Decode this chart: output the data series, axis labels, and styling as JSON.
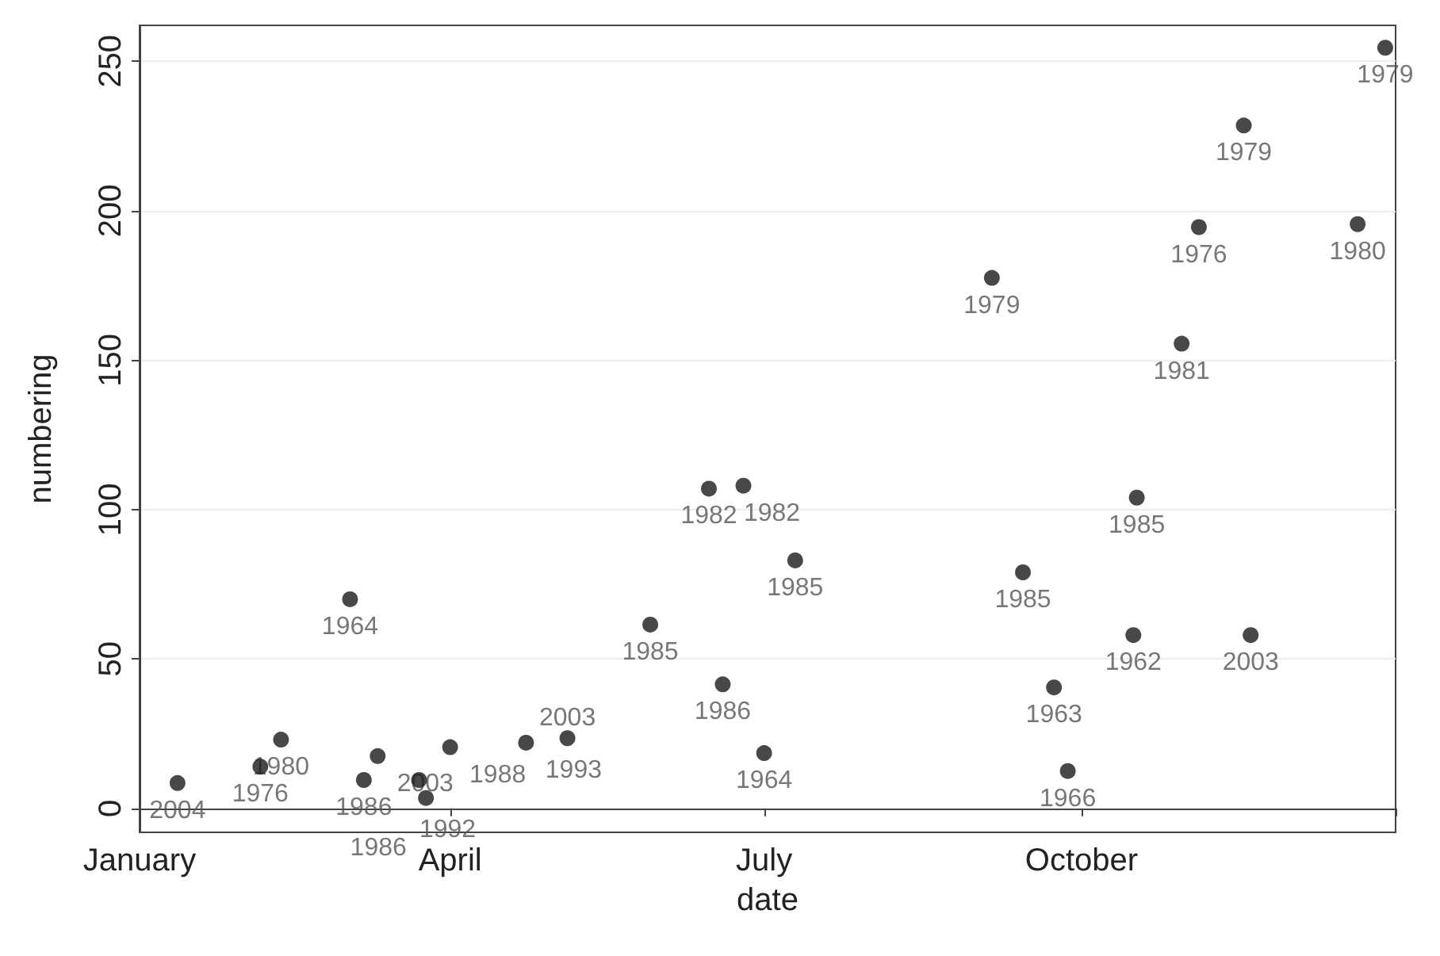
{
  "chart_data": {
    "type": "scatter",
    "xlabel": "date",
    "ylabel": "numbering",
    "x": [
      "--01-12",
      "--02-05",
      "--02-11",
      "--03-03",
      "--03-07",
      "--03-11",
      "--03-23",
      "--03-25",
      "--04-01",
      "--04-23",
      "--05-05",
      "--05-29",
      "--06-15",
      "--06-25",
      "--07-10",
      "--06-19",
      "--07-01",
      "--09-05",
      "--10-30",
      "--10-17",
      "--09-14",
      "--10-16",
      "--11-19",
      "--09-23",
      "--09-27",
      "--12-28",
      "--11-17",
      "--11-04",
      "--12-20"
    ],
    "values": [
      8.5,
      14,
      23,
      70,
      9.5,
      17.5,
      9.5,
      3.5,
      20.5,
      22,
      23.5,
      61.5,
      107,
      108,
      83,
      41.5,
      18.5,
      177.5,
      155.5,
      104,
      79,
      58,
      58,
      40.5,
      12.5,
      254.5,
      228.5,
      194.5,
      195.5
    ],
    "annotations": [
      {
        "text": "2004",
        "x": "--01-12",
        "y": 8.5
      },
      {
        "text": "1976",
        "x": "--02-05",
        "y": 14
      },
      {
        "text": "1980",
        "x": "--02-11",
        "y": 23
      },
      {
        "text": "1964",
        "x": "--03-03",
        "y": 70
      },
      {
        "text": "1986",
        "x": "--03-07",
        "y": 9.5
      },
      {
        "text": "2003",
        "x": "--03-11",
        "y": 17.5
      },
      {
        "text": "1992",
        "x": "--03-23",
        "y": 9.5
      },
      {
        "text": "1986",
        "x": "--03-25",
        "y": 3.5
      },
      {
        "text": "1988",
        "x": "--04-01",
        "y": 20.5
      },
      {
        "text": "1993",
        "x": "--04-23",
        "y": 22
      },
      {
        "text": "2003",
        "x": "--05-05",
        "y": 23.5
      },
      {
        "text": "1985",
        "x": "--05-29",
        "y": 61.5
      },
      {
        "text": "1982",
        "x": "--06-15",
        "y": 107
      },
      {
        "text": "1982",
        "x": "--06-25",
        "y": 108
      },
      {
        "text": "1985",
        "x": "--07-10",
        "y": 83
      },
      {
        "text": "1986",
        "x": "--06-19",
        "y": 41.5
      },
      {
        "text": "1964",
        "x": "--07-01",
        "y": 18.5
      },
      {
        "text": "1979",
        "x": "--09-05",
        "y": 177.5
      },
      {
        "text": "1981",
        "x": "--10-30",
        "y": 155.5
      },
      {
        "text": "1985",
        "x": "--10-17",
        "y": 104
      },
      {
        "text": "1985",
        "x": "--09-14",
        "y": 79
      },
      {
        "text": "1962",
        "x": "--10-16",
        "y": 58
      },
      {
        "text": "2003",
        "x": "--11-19",
        "y": 58
      },
      {
        "text": "1963",
        "x": "--09-23",
        "y": 40.5
      },
      {
        "text": "1966",
        "x": "--09-27",
        "y": 12.5
      },
      {
        "text": "1979",
        "x": "--12-28",
        "y": 254.5
      },
      {
        "text": "1979",
        "x": "--11-17",
        "y": 228.5
      },
      {
        "text": "1976",
        "x": "--11-04",
        "y": 194.5
      },
      {
        "text": "1980",
        "x": "--12-20",
        "y": 195.5
      }
    ],
    "color": "#1a1a1a",
    "marker": "circle",
    "grid": "y",
    "xlim": [
      "--01-01",
      "--12-31"
    ],
    "xticks": [
      {
        "value": "--01-01",
        "label": "January"
      },
      {
        "value": "--04-01",
        "label": "April"
      },
      {
        "value": "--07-01",
        "label": "July"
      },
      {
        "value": "--10-01",
        "label": "October"
      },
      {
        "value": "--12-31",
        "label": null
      }
    ],
    "ylim": [
      -8,
      262
    ],
    "yticks": [
      0,
      50,
      100,
      150,
      200,
      250
    ]
  }
}
